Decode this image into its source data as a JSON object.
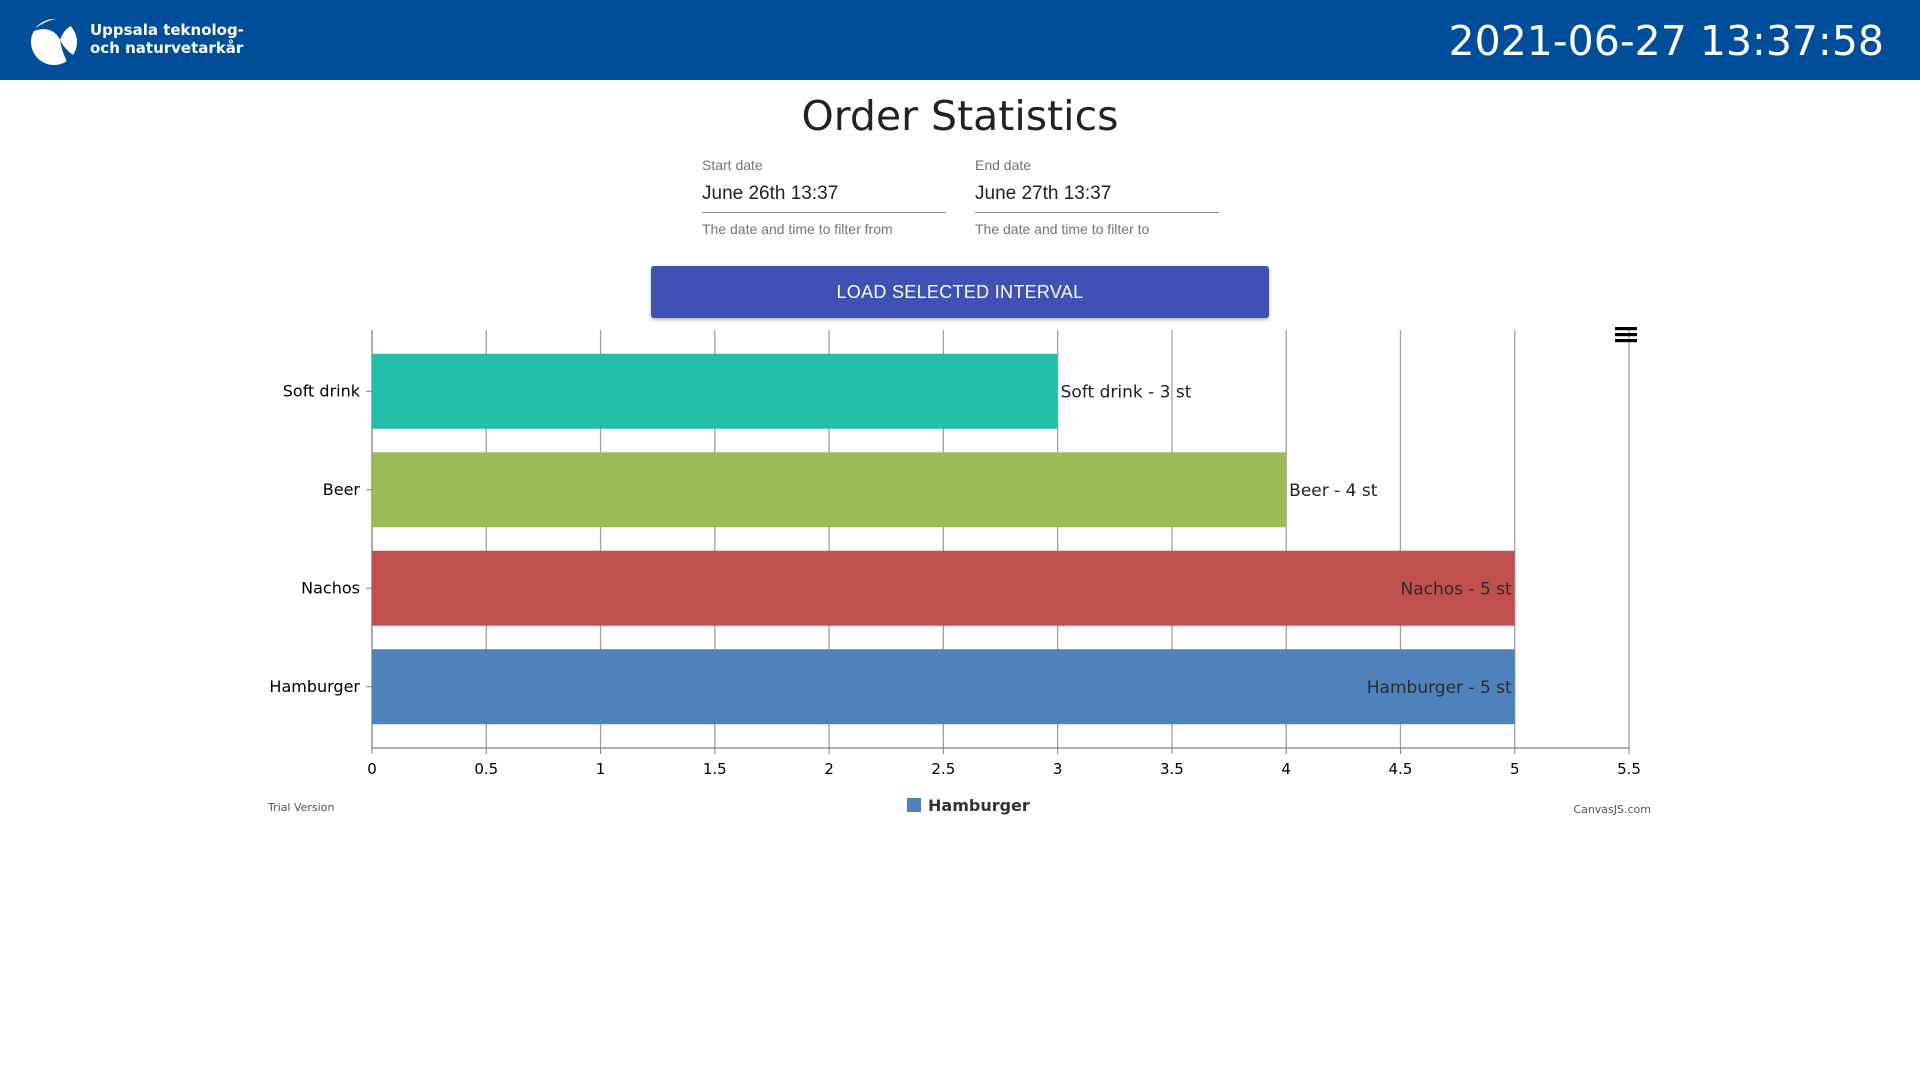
{
  "header": {
    "logo_line1": "Uppsala teknolog-",
    "logo_line2": "och naturvetarkår",
    "clock": "2021-06-27 13:37:58",
    "bg_color": "#004d9a"
  },
  "page": {
    "title": "Order Statistics"
  },
  "filters": {
    "start": {
      "label": "Start date",
      "value": "June 26th 13:37",
      "hint": "The date and time to filter from"
    },
    "end": {
      "label": "End date",
      "value": "June 27th 13:37",
      "hint": "The date and time to filter to"
    },
    "load_button": "LOAD SELECTED INTERVAL",
    "button_color": "#3f51b5"
  },
  "chart_data": {
    "type": "bar",
    "orientation": "horizontal",
    "categories": [
      "Hamburger",
      "Nachos",
      "Beer",
      "Soft drink"
    ],
    "values": [
      5,
      5,
      4,
      3
    ],
    "colors": [
      "#4f81bc",
      "#c0504e",
      "#9bbb58",
      "#23bfaa"
    ],
    "data_labels": [
      "Hamburger - 5 st",
      "Nachos - 5 st",
      "Beer - 4 st",
      "Soft drink - 3 st"
    ],
    "xlim": [
      0,
      5.5
    ],
    "x_ticks": [
      "0",
      "0.5",
      "1",
      "1.5",
      "2",
      "2.5",
      "3",
      "3.5",
      "4",
      "4.5",
      "5",
      "5.5"
    ],
    "grid": true,
    "legend": {
      "position": "bottom",
      "entries": [
        {
          "name": "Hamburger",
          "color": "#4f81bc"
        }
      ]
    },
    "menu_icon": "hamburger-menu-icon",
    "watermark_left": "Trial Version",
    "watermark_right": "CanvasJS.com"
  }
}
